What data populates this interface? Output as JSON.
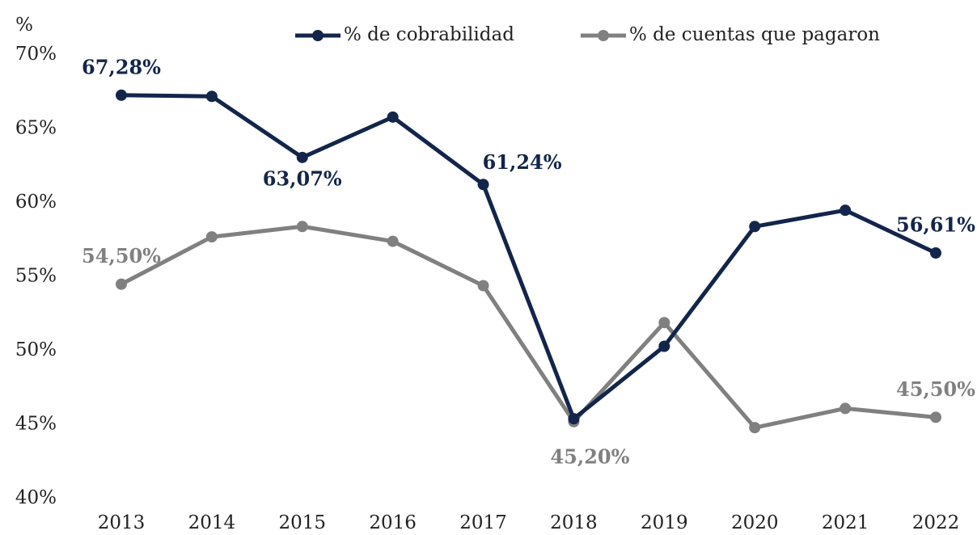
{
  "chart_data": {
    "type": "line",
    "y_axis_label": "%",
    "categories": [
      "2013",
      "2014",
      "2015",
      "2016",
      "2017",
      "2018",
      "2019",
      "2020",
      "2021",
      "2022"
    ],
    "series": [
      {
        "name": "% de cobrabilidad",
        "color": "#13254a",
        "values": [
          67.28,
          67.2,
          63.07,
          65.8,
          61.24,
          45.4,
          50.3,
          58.4,
          59.5,
          56.61
        ],
        "value_labels": [
          "67,28%",
          null,
          "63,07%",
          null,
          "61,24%",
          null,
          null,
          null,
          null,
          "56,61%"
        ]
      },
      {
        "name": "% de cuentas que pagaron",
        "color": "#808080",
        "values": [
          54.5,
          57.7,
          58.4,
          57.4,
          54.4,
          45.2,
          51.9,
          44.8,
          46.1,
          45.5
        ],
        "value_labels": [
          "54,50%",
          null,
          null,
          null,
          null,
          "45,20%",
          null,
          null,
          null,
          "45,50%"
        ]
      }
    ],
    "ylim": [
      40,
      70
    ],
    "yticks": [
      {
        "value": 40,
        "label": "40%"
      },
      {
        "value": 45,
        "label": "45%"
      },
      {
        "value": 50,
        "label": "50%"
      },
      {
        "value": 55,
        "label": "55%"
      },
      {
        "value": 60,
        "label": "60%"
      },
      {
        "value": 65,
        "label": "65%"
      },
      {
        "value": 70,
        "label": "70%"
      }
    ],
    "grid": false,
    "legend": "top"
  }
}
